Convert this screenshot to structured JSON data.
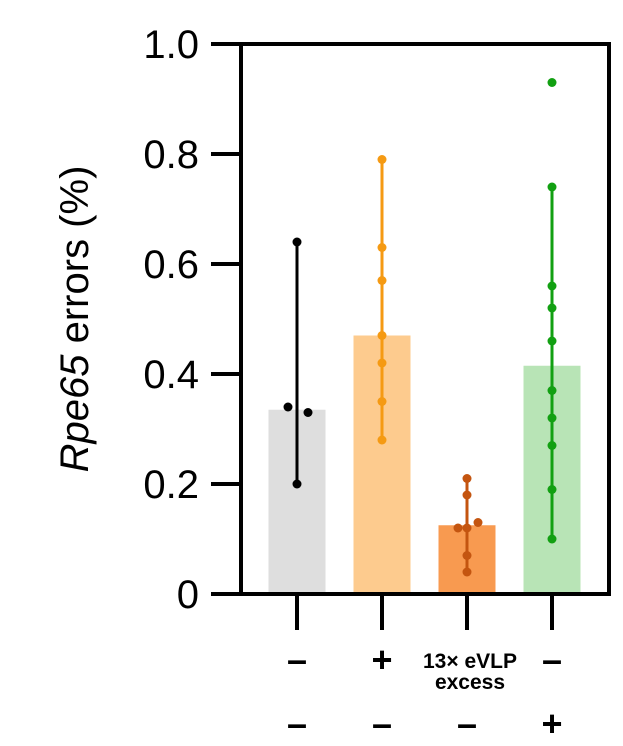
{
  "chart_data": {
    "type": "bar",
    "ylabel_italic": "Rpe65",
    "ylabel_rest": " errors (%)",
    "ylim": [
      0,
      1.0
    ],
    "yticks": [
      {
        "value": 0,
        "label": "0"
      },
      {
        "value": 0.2,
        "label": "0.2"
      },
      {
        "value": 0.4,
        "label": "0.4"
      },
      {
        "value": 0.6,
        "label": "0.6"
      },
      {
        "value": 0.8,
        "label": "0.8"
      },
      {
        "value": 1.0,
        "label": "1.0"
      }
    ],
    "groups": [
      {
        "mean": 0.335,
        "points": [
          0.64,
          0.34,
          0.33,
          0.2
        ],
        "error": [
          0.2,
          0.64
        ],
        "bar_color": "#dedede",
        "point_color": "#000000"
      },
      {
        "mean": 0.47,
        "points": [
          0.79,
          0.63,
          0.57,
          0.47,
          0.42,
          0.35,
          0.28
        ],
        "error": [
          0.28,
          0.79
        ],
        "bar_color": "#fdcb8e",
        "point_color": "#f59a13"
      },
      {
        "mean": 0.125,
        "points": [
          0.21,
          0.18,
          0.13,
          0.12,
          0.12,
          0.07,
          0.04
        ],
        "error": [
          0.04,
          0.21
        ],
        "bar_color": "#f89a50",
        "point_color": "#c45510"
      },
      {
        "mean": 0.415,
        "points": [
          0.93,
          0.74,
          0.56,
          0.52,
          0.46,
          0.37,
          0.32,
          0.27,
          0.19,
          0.1
        ],
        "error": [
          0.1,
          0.74
        ],
        "bar_color": "#b8e4b6",
        "point_color": "#12a012"
      }
    ],
    "conditions": {
      "row1": [
        "–",
        "+",
        "13× eVLP\nexcess",
        "–"
      ],
      "row2": [
        "–",
        "–",
        "–",
        "+"
      ]
    }
  }
}
